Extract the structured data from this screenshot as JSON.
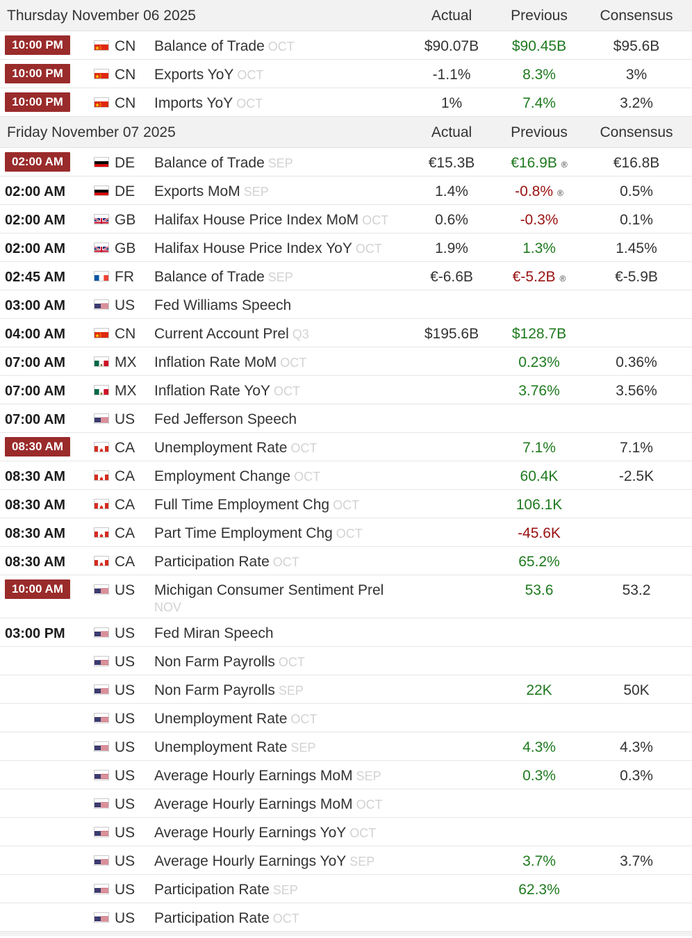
{
  "groups": [
    {
      "date": "Thursday November 06 2025",
      "columns": {
        "actual": "Actual",
        "previous": "Previous",
        "consensus": "Consensus"
      },
      "rows": [
        {
          "time": "10:00 PM",
          "highlight": true,
          "flag": "cn",
          "country": "CN",
          "event": "Balance of Trade",
          "ref": "OCT",
          "actual": "$90.07B",
          "previous": "$90.45B",
          "prev_color": "pos",
          "consensus": "$95.6B"
        },
        {
          "time": "10:00 PM",
          "highlight": true,
          "flag": "cn",
          "country": "CN",
          "event": "Exports YoY",
          "ref": "OCT",
          "actual": "-1.1%",
          "previous": "8.3%",
          "prev_color": "pos",
          "consensus": "3%"
        },
        {
          "time": "10:00 PM",
          "highlight": true,
          "flag": "cn",
          "country": "CN",
          "event": "Imports YoY",
          "ref": "OCT",
          "actual": "1%",
          "previous": "7.4%",
          "prev_color": "pos",
          "consensus": "3.2%"
        }
      ]
    },
    {
      "date": "Friday November 07 2025",
      "columns": {
        "actual": "Actual",
        "previous": "Previous",
        "consensus": "Consensus"
      },
      "rows": [
        {
          "time": "02:00 AM",
          "highlight": true,
          "flag": "de",
          "country": "DE",
          "event": "Balance of Trade",
          "ref": "SEP",
          "actual": "€15.3B",
          "previous": "€16.9B",
          "prev_color": "pos",
          "revised": "®",
          "consensus": "€16.8B"
        },
        {
          "time": "02:00 AM",
          "flag": "de",
          "country": "DE",
          "event": "Exports MoM",
          "ref": "SEP",
          "actual": "1.4%",
          "previous": "-0.8%",
          "prev_color": "neg",
          "revised": "®",
          "consensus": "0.5%"
        },
        {
          "time": "02:00 AM",
          "flag": "gb",
          "country": "GB",
          "event": "Halifax House Price Index MoM",
          "ref": "OCT",
          "actual": "0.6%",
          "previous": "-0.3%",
          "prev_color": "neg",
          "consensus": "0.1%"
        },
        {
          "time": "02:00 AM",
          "flag": "gb",
          "country": "GB",
          "event": "Halifax House Price Index YoY",
          "ref": "OCT",
          "actual": "1.9%",
          "previous": "1.3%",
          "prev_color": "pos",
          "consensus": "1.45%"
        },
        {
          "time": "02:45 AM",
          "flag": "fr",
          "country": "FR",
          "event": "Balance of Trade",
          "ref": "SEP",
          "actual": "€-6.6B",
          "previous": "€-5.2B",
          "prev_color": "neg",
          "revised": "®",
          "consensus": "€-5.9B"
        },
        {
          "time": "03:00 AM",
          "flag": "us",
          "country": "US",
          "event": "Fed Williams Speech",
          "ref": "",
          "actual": "",
          "previous": "",
          "consensus": ""
        },
        {
          "time": "04:00 AM",
          "flag": "cn",
          "country": "CN",
          "event": "Current Account Prel",
          "ref": "Q3",
          "actual": "$195.6B",
          "previous": "$128.7B",
          "prev_color": "pos",
          "consensus": ""
        },
        {
          "time": "07:00 AM",
          "flag": "mx",
          "country": "MX",
          "event": "Inflation Rate MoM",
          "ref": "OCT",
          "actual": "",
          "previous": "0.23%",
          "prev_color": "pos",
          "consensus": "0.36%"
        },
        {
          "time": "07:00 AM",
          "flag": "mx",
          "country": "MX",
          "event": "Inflation Rate YoY",
          "ref": "OCT",
          "actual": "",
          "previous": "3.76%",
          "prev_color": "pos",
          "consensus": "3.56%"
        },
        {
          "time": "07:00 AM",
          "flag": "us",
          "country": "US",
          "event": "Fed Jefferson Speech",
          "ref": "",
          "actual": "",
          "previous": "",
          "consensus": ""
        },
        {
          "time": "08:30 AM",
          "highlight": true,
          "flag": "ca",
          "country": "CA",
          "event": "Unemployment Rate",
          "ref": "OCT",
          "actual": "",
          "previous": "7.1%",
          "prev_color": "pos",
          "consensus": "7.1%"
        },
        {
          "time": "08:30 AM",
          "flag": "ca",
          "country": "CA",
          "event": "Employment Change",
          "ref": "OCT",
          "actual": "",
          "previous": "60.4K",
          "prev_color": "pos",
          "consensus": "-2.5K"
        },
        {
          "time": "08:30 AM",
          "flag": "ca",
          "country": "CA",
          "event": "Full Time Employment Chg",
          "ref": "OCT",
          "actual": "",
          "previous": "106.1K",
          "prev_color": "pos",
          "consensus": ""
        },
        {
          "time": "08:30 AM",
          "flag": "ca",
          "country": "CA",
          "event": "Part Time Employment Chg",
          "ref": "OCT",
          "actual": "",
          "previous": "-45.6K",
          "prev_color": "neg",
          "consensus": ""
        },
        {
          "time": "08:30 AM",
          "flag": "ca",
          "country": "CA",
          "event": "Participation Rate",
          "ref": "OCT",
          "actual": "",
          "previous": "65.2%",
          "prev_color": "pos",
          "consensus": ""
        },
        {
          "time": "10:00 AM",
          "highlight": true,
          "tall": true,
          "flag": "us",
          "country": "US",
          "event": "Michigan Consumer Sentiment Prel",
          "ref": "NOV",
          "actual": "",
          "previous": "53.6",
          "prev_color": "pos",
          "consensus": "53.2"
        },
        {
          "time": "03:00 PM",
          "flag": "us",
          "country": "US",
          "event": "Fed Miran Speech",
          "ref": "",
          "actual": "",
          "previous": "",
          "consensus": ""
        },
        {
          "time": "",
          "flag": "us",
          "country": "US",
          "event": "Non Farm Payrolls",
          "ref": "OCT",
          "actual": "",
          "previous": "",
          "consensus": ""
        },
        {
          "time": "",
          "flag": "us",
          "country": "US",
          "event": "Non Farm Payrolls",
          "ref": "SEP",
          "actual": "",
          "previous": "22K",
          "prev_color": "pos",
          "consensus": "50K"
        },
        {
          "time": "",
          "flag": "us",
          "country": "US",
          "event": "Unemployment Rate",
          "ref": "OCT",
          "actual": "",
          "previous": "",
          "consensus": ""
        },
        {
          "time": "",
          "flag": "us",
          "country": "US",
          "event": "Unemployment Rate",
          "ref": "SEP",
          "actual": "",
          "previous": "4.3%",
          "prev_color": "pos",
          "consensus": "4.3%"
        },
        {
          "time": "",
          "flag": "us",
          "country": "US",
          "event": "Average Hourly Earnings MoM",
          "ref": "SEP",
          "actual": "",
          "previous": "0.3%",
          "prev_color": "pos",
          "consensus": "0.3%"
        },
        {
          "time": "",
          "flag": "us",
          "country": "US",
          "event": "Average Hourly Earnings MoM",
          "ref": "OCT",
          "actual": "",
          "previous": "",
          "consensus": ""
        },
        {
          "time": "",
          "flag": "us",
          "country": "US",
          "event": "Average Hourly Earnings YoY",
          "ref": "OCT",
          "actual": "",
          "previous": "",
          "consensus": ""
        },
        {
          "time": "",
          "flag": "us",
          "country": "US",
          "event": "Average Hourly Earnings YoY",
          "ref": "SEP",
          "actual": "",
          "previous": "3.7%",
          "prev_color": "pos",
          "consensus": "3.7%"
        },
        {
          "time": "",
          "flag": "us",
          "country": "US",
          "event": "Participation Rate",
          "ref": "SEP",
          "actual": "",
          "previous": "62.3%",
          "prev_color": "pos",
          "consensus": ""
        },
        {
          "time": "",
          "flag": "us",
          "country": "US",
          "event": "Participation Rate",
          "ref": "OCT",
          "actual": "",
          "previous": "",
          "consensus": ""
        }
      ]
    }
  ],
  "colors": {
    "highlight": "#9a2b2b",
    "positive": "#1f7a1f",
    "negative": "#991111",
    "header_bg": "#f2f2f2"
  },
  "flag_icons": {
    "cn": "china-flag-icon",
    "de": "germany-flag-icon",
    "gb": "uk-flag-icon",
    "fr": "france-flag-icon",
    "us": "us-flag-icon",
    "mx": "mexico-flag-icon",
    "ca": "canada-flag-icon"
  }
}
